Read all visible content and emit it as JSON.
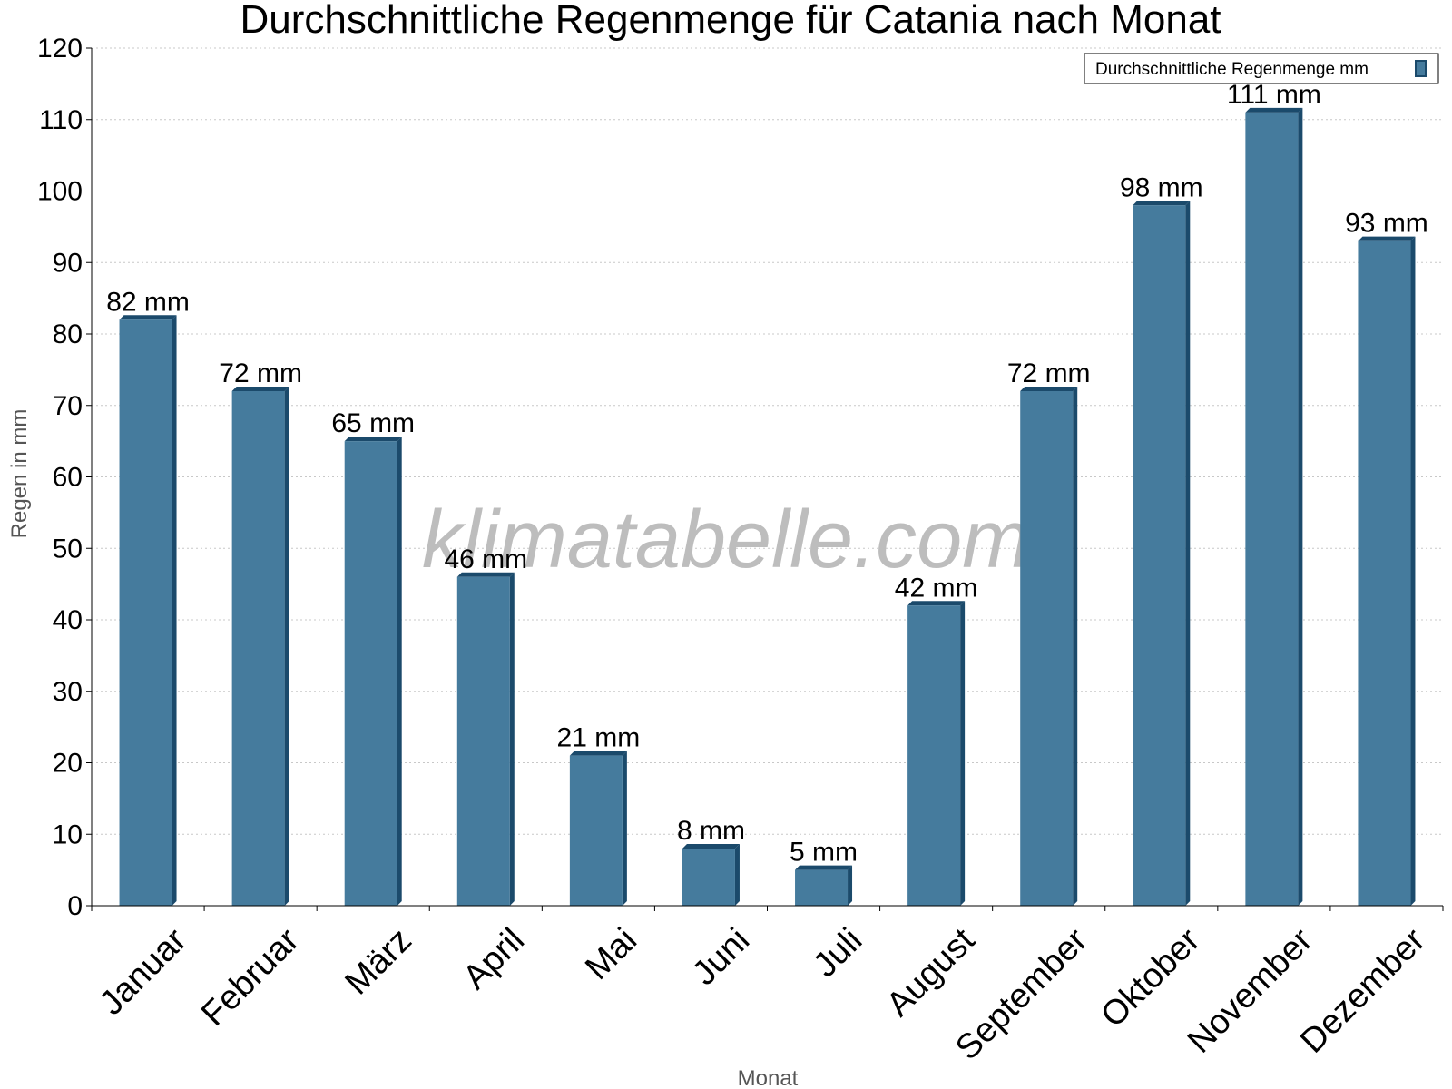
{
  "chart_data": {
    "type": "bar",
    "title": "Durchschnittliche Regenmenge für Catania nach Monat",
    "xlabel": "Monat",
    "ylabel": "Regen in mm",
    "categories": [
      "Januar",
      "Februar",
      "März",
      "April",
      "Mai",
      "Juni",
      "Juli",
      "August",
      "September",
      "Oktober",
      "November",
      "Dezember"
    ],
    "series": [
      {
        "name": "Durchschnittliche Regenmenge mm",
        "values": [
          82,
          72,
          65,
          46,
          21,
          8,
          5,
          42,
          72,
          98,
          111,
          93
        ],
        "value_labels": [
          "82 mm",
          "72 mm",
          "65 mm",
          "46 mm",
          "21 mm",
          "8 mm",
          "5 mm",
          "42 mm",
          "72 mm",
          "98 mm",
          "111 mm",
          "93 mm"
        ]
      }
    ],
    "ylim": [
      0,
      120
    ],
    "yticks": [
      0,
      10,
      20,
      30,
      40,
      50,
      60,
      70,
      80,
      90,
      100,
      110,
      120
    ],
    "grid": true,
    "legend_position": "top-right",
    "bar_color": "#457b9d",
    "bar_edge_color": "#1b4a6b"
  },
  "watermark": "klimatabelle.com"
}
